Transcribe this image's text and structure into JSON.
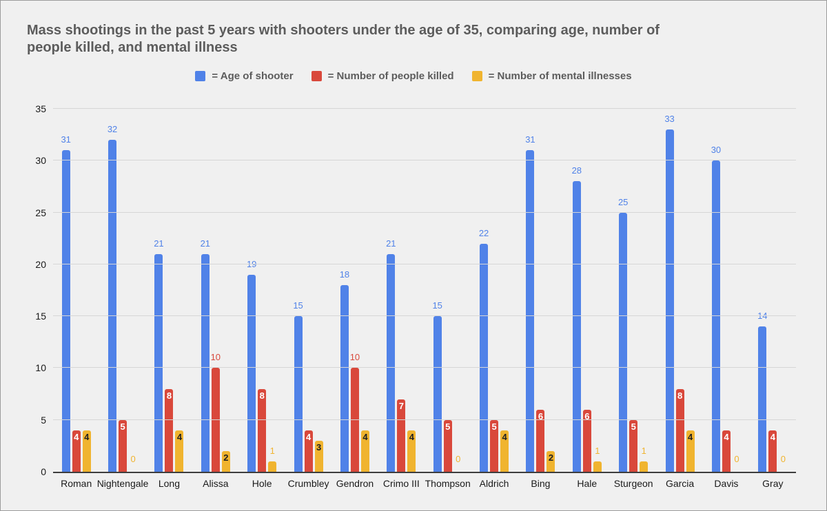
{
  "window": {
    "background": "#F0F0F0",
    "border_color": "#9C9C9C"
  },
  "title_lines": [
    "Mass shootings in the past 5 years with shooters under the age of 35, comparing age, number of",
    "people killed, and mental illness"
  ],
  "legend": {
    "items": [
      {
        "label": "= Age of shooter",
        "color": "#5082E8"
      },
      {
        "label": "= Number of people killed",
        "color": "#D9483B"
      },
      {
        "label": "= Number of mental illnesses",
        "color": "#F0B42F"
      }
    ]
  },
  "chart_data": {
    "type": "bar",
    "title": "Mass shootings in the past 5 years with shooters under the age of 35, comparing age, number of people killed, and mental illness",
    "categories": [
      "Roman",
      "Nightengale",
      "Long",
      "Alissa",
      "Hole",
      "Crumbley",
      "Gendron",
      "Crimo III",
      "Thompson",
      "Aldrich",
      "Bing",
      "Hale",
      "Sturgeon",
      "Garcia",
      "Davis",
      "Gray"
    ],
    "series": [
      {
        "name": "Age of shooter",
        "color": "#5082E8",
        "values": [
          31,
          32,
          21,
          21,
          19,
          15,
          18,
          21,
          15,
          22,
          31,
          28,
          25,
          33,
          30,
          14
        ],
        "label_placement": "above",
        "label_color": "#5082E8"
      },
      {
        "name": "Number of people killed",
        "color": "#D9483B",
        "values": [
          4,
          5,
          8,
          10,
          8,
          4,
          10,
          7,
          5,
          5,
          6,
          6,
          5,
          8,
          4,
          4
        ],
        "label_placement": "auto",
        "inside_label_color": "#FFFFFF",
        "label_color": "#D9483B"
      },
      {
        "name": "Number of mental illnesses",
        "color": "#F0B42F",
        "values": [
          4,
          0,
          4,
          2,
          1,
          3,
          4,
          4,
          0,
          4,
          2,
          1,
          1,
          4,
          0,
          0
        ],
        "label_placement": "auto",
        "inside_label_color": "#202020",
        "label_color": "#F0B42F"
      }
    ],
    "xlabel": "",
    "ylabel": "",
    "ylim": [
      0,
      35
    ],
    "yticks": [
      0,
      5,
      10,
      15,
      20,
      25,
      30,
      35
    ],
    "grid": true,
    "legend_position": "top",
    "gridline_color": "#D6D6D6",
    "axis_line_color": "#3D3D3D",
    "axis_text_color": "#1A1A1A"
  }
}
